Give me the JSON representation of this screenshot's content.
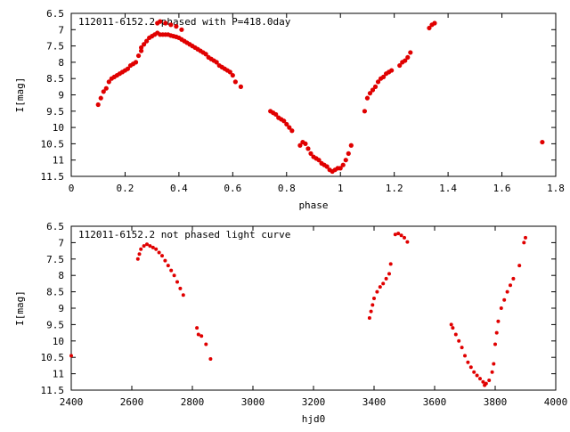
{
  "colors": {
    "points": "#e00000",
    "axes": "#000000",
    "background": "#ffffff"
  },
  "chart_data": [
    {
      "type": "scatter",
      "title": "112011-6152.2 phased with P=418.0day",
      "xlabel": "phase",
      "ylabel": "I[mag]",
      "xlim": [
        0,
        1.8
      ],
      "ylim": [
        11.5,
        6.5
      ],
      "y_inverted": true,
      "grid": false,
      "x_ticks": [
        "0",
        "0.2",
        "0.4",
        "0.6",
        "0.8",
        "1",
        "1.2",
        "1.4",
        "1.6",
        "1.8"
      ],
      "y_ticks": [
        "6.5",
        "7",
        "7.5",
        "8",
        "8.5",
        "9",
        "9.5",
        "10",
        "10.5",
        "11",
        "11.5"
      ],
      "series": [
        {
          "x": [
            0.1,
            0.11,
            0.12,
            0.13,
            0.14,
            0.15,
            0.16,
            0.17,
            0.18,
            0.19,
            0.2,
            0.21,
            0.22,
            0.23,
            0.24,
            0.25,
            0.26,
            0.26,
            0.27,
            0.28,
            0.29,
            0.3,
            0.31,
            0.32,
            0.33,
            0.34,
            0.35,
            0.36,
            0.37,
            0.38,
            0.39,
            0.4,
            0.41,
            0.42,
            0.43,
            0.44,
            0.45,
            0.46,
            0.47,
            0.48,
            0.49,
            0.5,
            0.51,
            0.52,
            0.53,
            0.54,
            0.55,
            0.56,
            0.57,
            0.58,
            0.59,
            0.6,
            0.61,
            0.63,
            0.32,
            0.33,
            0.35,
            0.37,
            0.39,
            0.41,
            0.74,
            0.75,
            0.76,
            0.77,
            0.78,
            0.79,
            0.8,
            0.81,
            0.82,
            0.85,
            0.86,
            0.87,
            0.88,
            0.89,
            0.9,
            0.91,
            0.92,
            0.93,
            0.94,
            0.95,
            0.96,
            0.97,
            0.98,
            0.99,
            1.0,
            1.01,
            1.02,
            1.03,
            1.04,
            1.09,
            1.1,
            1.11,
            1.12,
            1.13,
            1.14,
            1.15,
            1.16,
            1.17,
            1.18,
            1.19,
            1.22,
            1.23,
            1.24,
            1.25,
            1.26,
            1.33,
            1.34,
            1.35,
            1.75
          ],
          "y": [
            9.3,
            9.1,
            8.9,
            8.8,
            8.6,
            8.5,
            8.45,
            8.4,
            8.35,
            8.3,
            8.25,
            8.2,
            8.1,
            8.05,
            8.0,
            7.8,
            7.65,
            7.55,
            7.45,
            7.35,
            7.25,
            7.2,
            7.15,
            7.1,
            7.15,
            7.15,
            7.15,
            7.15,
            7.18,
            7.2,
            7.22,
            7.25,
            7.3,
            7.35,
            7.4,
            7.45,
            7.5,
            7.55,
            7.6,
            7.65,
            7.7,
            7.75,
            7.85,
            7.9,
            7.95,
            8.0,
            8.1,
            8.15,
            8.2,
            8.25,
            8.3,
            8.4,
            8.6,
            8.75,
            6.8,
            6.75,
            6.8,
            6.85,
            6.9,
            7.0,
            9.5,
            9.55,
            9.6,
            9.7,
            9.75,
            9.8,
            9.9,
            10.0,
            10.1,
            10.55,
            10.45,
            10.5,
            10.65,
            10.8,
            10.9,
            10.95,
            11.0,
            11.1,
            11.15,
            11.2,
            11.3,
            11.35,
            11.3,
            11.25,
            11.25,
            11.15,
            11.0,
            10.8,
            10.55,
            9.5,
            9.1,
            8.95,
            8.85,
            8.75,
            8.6,
            8.5,
            8.45,
            8.35,
            8.3,
            8.25,
            8.1,
            8.0,
            7.95,
            7.85,
            7.7,
            6.95,
            6.85,
            6.8,
            10.45
          ]
        }
      ]
    },
    {
      "type": "scatter",
      "title": "112011-6152.2 not phased light curve",
      "xlabel": "hjd0",
      "ylabel": "I[mag]",
      "xlim": [
        2400,
        4000
      ],
      "ylim": [
        11.5,
        6.5
      ],
      "y_inverted": true,
      "grid": false,
      "x_ticks": [
        "2400",
        "2600",
        "2800",
        "3000",
        "3200",
        "3400",
        "3600",
        "3800",
        "4000"
      ],
      "y_ticks": [
        "6.5",
        "7",
        "7.5",
        "8",
        "8.5",
        "9",
        "9.5",
        "10",
        "10.5",
        "11",
        "11.5"
      ],
      "series": [
        {
          "x": [
            2400,
            2620,
            2625,
            2630,
            2640,
            2650,
            2660,
            2670,
            2680,
            2690,
            2700,
            2710,
            2720,
            2730,
            2740,
            2750,
            2760,
            2770,
            2815,
            2820,
            2830,
            2845,
            2860,
            3385,
            3390,
            3395,
            3400,
            3410,
            3420,
            3430,
            3440,
            3450,
            3455,
            3470,
            3480,
            3490,
            3500,
            3510,
            3655,
            3660,
            3670,
            3680,
            3690,
            3700,
            3710,
            3720,
            3730,
            3740,
            3750,
            3760,
            3765,
            3770,
            3780,
            3790,
            3795,
            3800,
            3805,
            3810,
            3820,
            3830,
            3840,
            3850,
            3860,
            3880,
            3895,
            3900
          ],
          "y": [
            10.45,
            7.5,
            7.35,
            7.2,
            7.1,
            7.05,
            7.1,
            7.15,
            7.2,
            7.3,
            7.4,
            7.55,
            7.7,
            7.85,
            8.0,
            8.2,
            8.4,
            8.6,
            9.6,
            9.8,
            9.85,
            10.1,
            10.55,
            9.3,
            9.1,
            8.9,
            8.7,
            8.5,
            8.35,
            8.25,
            8.1,
            7.95,
            7.65,
            6.75,
            6.72,
            6.78,
            6.85,
            6.98,
            9.5,
            9.6,
            9.8,
            10.0,
            10.2,
            10.45,
            10.65,
            10.8,
            10.95,
            11.05,
            11.15,
            11.25,
            11.35,
            11.3,
            11.2,
            10.95,
            10.7,
            10.1,
            9.75,
            9.4,
            9.0,
            8.75,
            8.5,
            8.3,
            8.1,
            7.7,
            7.0,
            6.85
          ]
        }
      ]
    }
  ]
}
